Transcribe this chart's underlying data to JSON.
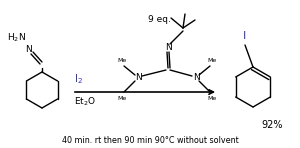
{
  "reagent_top": "9 eq.",
  "reagent_left": "I₂",
  "reagent_bottom": "Et₂O",
  "condition": "40 min. rt then 90 min 90°C without solvent",
  "yield": "92%",
  "iodine_color": "#3333cc",
  "bg_color": "#ffffff",
  "text_color": "#000000",
  "figsize": [
    3.0,
    1.48
  ],
  "dpi": 100
}
